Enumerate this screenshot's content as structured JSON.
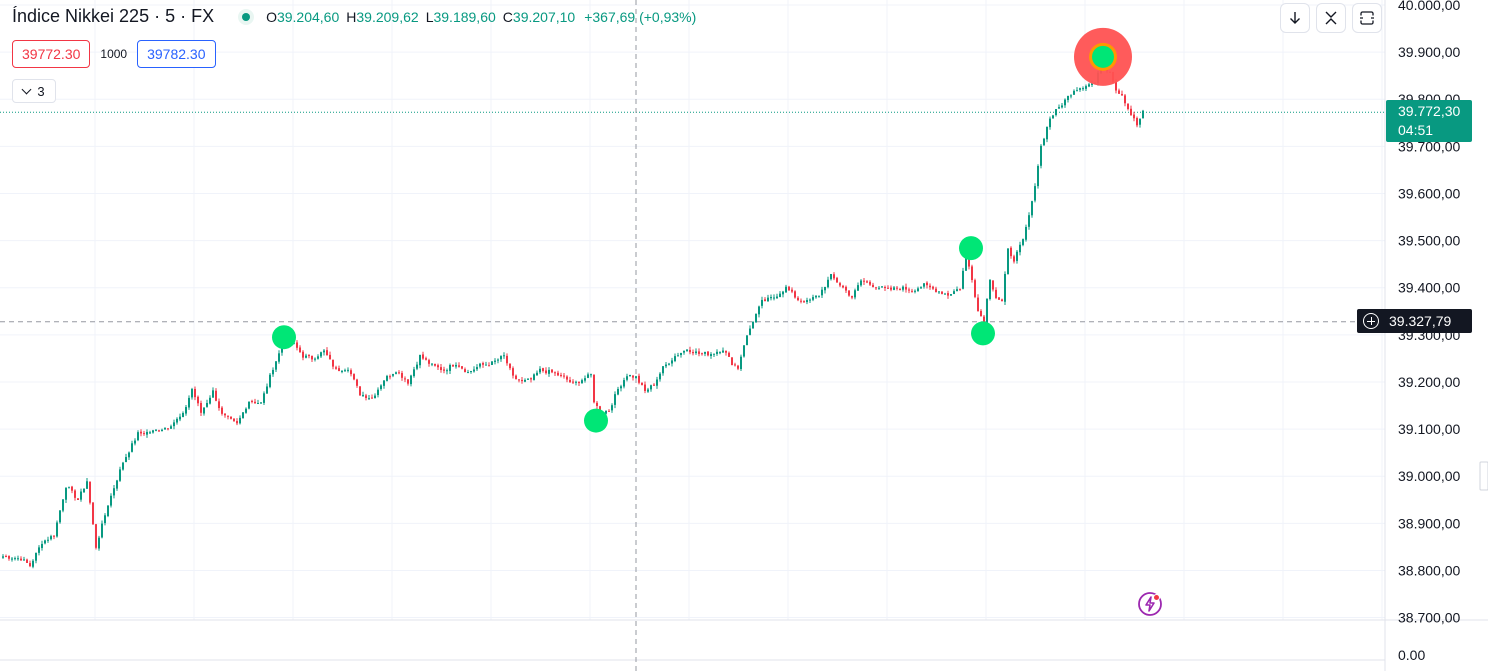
{
  "header": {
    "symbol_title": "Índice Nikkei 225 · 5 · FX",
    "open_key": "O",
    "open_value": "39.204,60",
    "high_key": "H",
    "high_value": "39.209,62",
    "low_key": "L",
    "low_value": "39.189,60",
    "close_key": "C",
    "close_value": "39.207,10",
    "change": "+367,69 (+0,93%)"
  },
  "trade_panel": {
    "sell_price": "39772.30",
    "quantity": "1000",
    "buy_price": "39782.30",
    "collapsed_count": "3"
  },
  "toolbar": {
    "icons": [
      "arrow-down-icon",
      "collapse-arrows-icon",
      "fullscreen-icon"
    ]
  },
  "price_scale": {
    "last_price": "39.772,30",
    "countdown": "04:51",
    "crosshair_price": "39.327,79",
    "indicator_zero": "0.00",
    "ticks": [
      {
        "label": "40.000,00",
        "value": 40000
      },
      {
        "label": "39.900,00",
        "value": 39900
      },
      {
        "label": "39.800,00",
        "value": 39800
      },
      {
        "label": "39.700,00",
        "value": 39700
      },
      {
        "label": "39.600,00",
        "value": 39600
      },
      {
        "label": "39.500,00",
        "value": 39500
      },
      {
        "label": "39.400,00",
        "value": 39400
      },
      {
        "label": "39.300,00",
        "value": 39300
      },
      {
        "label": "39.200,00",
        "value": 39200
      },
      {
        "label": "39.100,00",
        "value": 39100
      },
      {
        "label": "39.000,00",
        "value": 39000
      },
      {
        "label": "38.900,00",
        "value": 38900
      },
      {
        "label": "38.800,00",
        "value": 38800
      },
      {
        "label": "38.700,00",
        "value": 38700
      }
    ]
  },
  "colors": {
    "up": "#089981",
    "down": "#f23645",
    "marker": "#00e676",
    "marker_highlight": "#ff5252",
    "grid": "#f0f3fa"
  },
  "chart_data": {
    "type": "candlestick",
    "ylim": [
      38680,
      40000
    ],
    "last_price": 39772.3,
    "crosshair_price": 39327.79,
    "close_path": [
      {
        "i": 0,
        "y": 38830
      },
      {
        "i": 6,
        "y": 38825
      },
      {
        "i": 9,
        "y": 38810
      },
      {
        "i": 13,
        "y": 38860
      },
      {
        "i": 17,
        "y": 38875
      },
      {
        "i": 21,
        "y": 38980
      },
      {
        "i": 25,
        "y": 38950
      },
      {
        "i": 28,
        "y": 38990
      },
      {
        "i": 31,
        "y": 38850
      },
      {
        "i": 35,
        "y": 38940
      },
      {
        "i": 40,
        "y": 39030
      },
      {
        "i": 45,
        "y": 39090
      },
      {
        "i": 50,
        "y": 39095
      },
      {
        "i": 55,
        "y": 39105
      },
      {
        "i": 60,
        "y": 39130
      },
      {
        "i": 63,
        "y": 39185
      },
      {
        "i": 66,
        "y": 39135
      },
      {
        "i": 70,
        "y": 39180
      },
      {
        "i": 73,
        "y": 39130
      },
      {
        "i": 78,
        "y": 39110
      },
      {
        "i": 82,
        "y": 39160
      },
      {
        "i": 86,
        "y": 39155
      },
      {
        "i": 90,
        "y": 39230
      },
      {
        "i": 94,
        "y": 39290
      },
      {
        "i": 97,
        "y": 39280
      },
      {
        "i": 100,
        "y": 39255
      },
      {
        "i": 103,
        "y": 39250
      },
      {
        "i": 107,
        "y": 39265
      },
      {
        "i": 111,
        "y": 39225
      },
      {
        "i": 115,
        "y": 39230
      },
      {
        "i": 119,
        "y": 39175
      },
      {
        "i": 123,
        "y": 39165
      },
      {
        "i": 127,
        "y": 39205
      },
      {
        "i": 131,
        "y": 39225
      },
      {
        "i": 135,
        "y": 39200
      },
      {
        "i": 139,
        "y": 39255
      },
      {
        "i": 143,
        "y": 39235
      },
      {
        "i": 147,
        "y": 39225
      },
      {
        "i": 151,
        "y": 39240
      },
      {
        "i": 155,
        "y": 39220
      },
      {
        "i": 159,
        "y": 39235
      },
      {
        "i": 163,
        "y": 39240
      },
      {
        "i": 167,
        "y": 39255
      },
      {
        "i": 170,
        "y": 39210
      },
      {
        "i": 173,
        "y": 39200
      },
      {
        "i": 176,
        "y": 39205
      },
      {
        "i": 179,
        "y": 39225
      },
      {
        "i": 183,
        "y": 39220
      },
      {
        "i": 187,
        "y": 39210
      },
      {
        "i": 190,
        "y": 39195
      },
      {
        "i": 193,
        "y": 39205
      },
      {
        "i": 196,
        "y": 39215
      },
      {
        "i": 197,
        "y": 39160
      },
      {
        "i": 199,
        "y": 39135
      },
      {
        "i": 202,
        "y": 39140
      },
      {
        "i": 205,
        "y": 39185
      },
      {
        "i": 208,
        "y": 39215
      },
      {
        "i": 211,
        "y": 39210
      },
      {
        "i": 214,
        "y": 39180
      },
      {
        "i": 217,
        "y": 39195
      },
      {
        "i": 220,
        "y": 39230
      },
      {
        "i": 224,
        "y": 39255
      },
      {
        "i": 228,
        "y": 39270
      },
      {
        "i": 232,
        "y": 39260
      },
      {
        "i": 236,
        "y": 39260
      },
      {
        "i": 240,
        "y": 39270
      },
      {
        "i": 243,
        "y": 39240
      },
      {
        "i": 245,
        "y": 39230
      },
      {
        "i": 247,
        "y": 39280
      },
      {
        "i": 250,
        "y": 39330
      },
      {
        "i": 253,
        "y": 39370
      },
      {
        "i": 257,
        "y": 39380
      },
      {
        "i": 261,
        "y": 39400
      },
      {
        "i": 265,
        "y": 39375
      },
      {
        "i": 268,
        "y": 39370
      },
      {
        "i": 272,
        "y": 39385
      },
      {
        "i": 276,
        "y": 39425
      },
      {
        "i": 280,
        "y": 39400
      },
      {
        "i": 283,
        "y": 39380
      },
      {
        "i": 286,
        "y": 39415
      },
      {
        "i": 290,
        "y": 39405
      },
      {
        "i": 295,
        "y": 39395
      },
      {
        "i": 299,
        "y": 39400
      },
      {
        "i": 303,
        "y": 39395
      },
      {
        "i": 307,
        "y": 39405
      },
      {
        "i": 311,
        "y": 39395
      },
      {
        "i": 315,
        "y": 39385
      },
      {
        "i": 319,
        "y": 39400
      },
      {
        "i": 321,
        "y": 39470
      },
      {
        "i": 323,
        "y": 39420
      },
      {
        "i": 325,
        "y": 39350
      },
      {
        "i": 327,
        "y": 39330
      },
      {
        "i": 329,
        "y": 39420
      },
      {
        "i": 331,
        "y": 39380
      },
      {
        "i": 333,
        "y": 39370
      },
      {
        "i": 335,
        "y": 39480
      },
      {
        "i": 337,
        "y": 39460
      },
      {
        "i": 340,
        "y": 39500
      },
      {
        "i": 343,
        "y": 39580
      },
      {
        "i": 346,
        "y": 39700
      },
      {
        "i": 349,
        "y": 39760
      },
      {
        "i": 353,
        "y": 39790
      },
      {
        "i": 357,
        "y": 39820
      },
      {
        "i": 361,
        "y": 39830
      },
      {
        "i": 364,
        "y": 39835
      },
      {
        "i": 366,
        "y": 39870
      },
      {
        "i": 369,
        "y": 39860
      },
      {
        "i": 371,
        "y": 39820
      },
      {
        "i": 373,
        "y": 39810
      },
      {
        "i": 375,
        "y": 39780
      },
      {
        "i": 378,
        "y": 39745
      },
      {
        "i": 380,
        "y": 39772
      }
    ],
    "markers": [
      {
        "i": 94,
        "y": 39295,
        "type": "pivot"
      },
      {
        "i": 198,
        "y": 39118,
        "type": "pivot"
      },
      {
        "i": 323,
        "y": 39484,
        "type": "pivot"
      },
      {
        "i": 327,
        "y": 39303,
        "type": "pivot"
      },
      {
        "i": 367,
        "y": 39890,
        "type": "pivot-highlight"
      }
    ]
  }
}
